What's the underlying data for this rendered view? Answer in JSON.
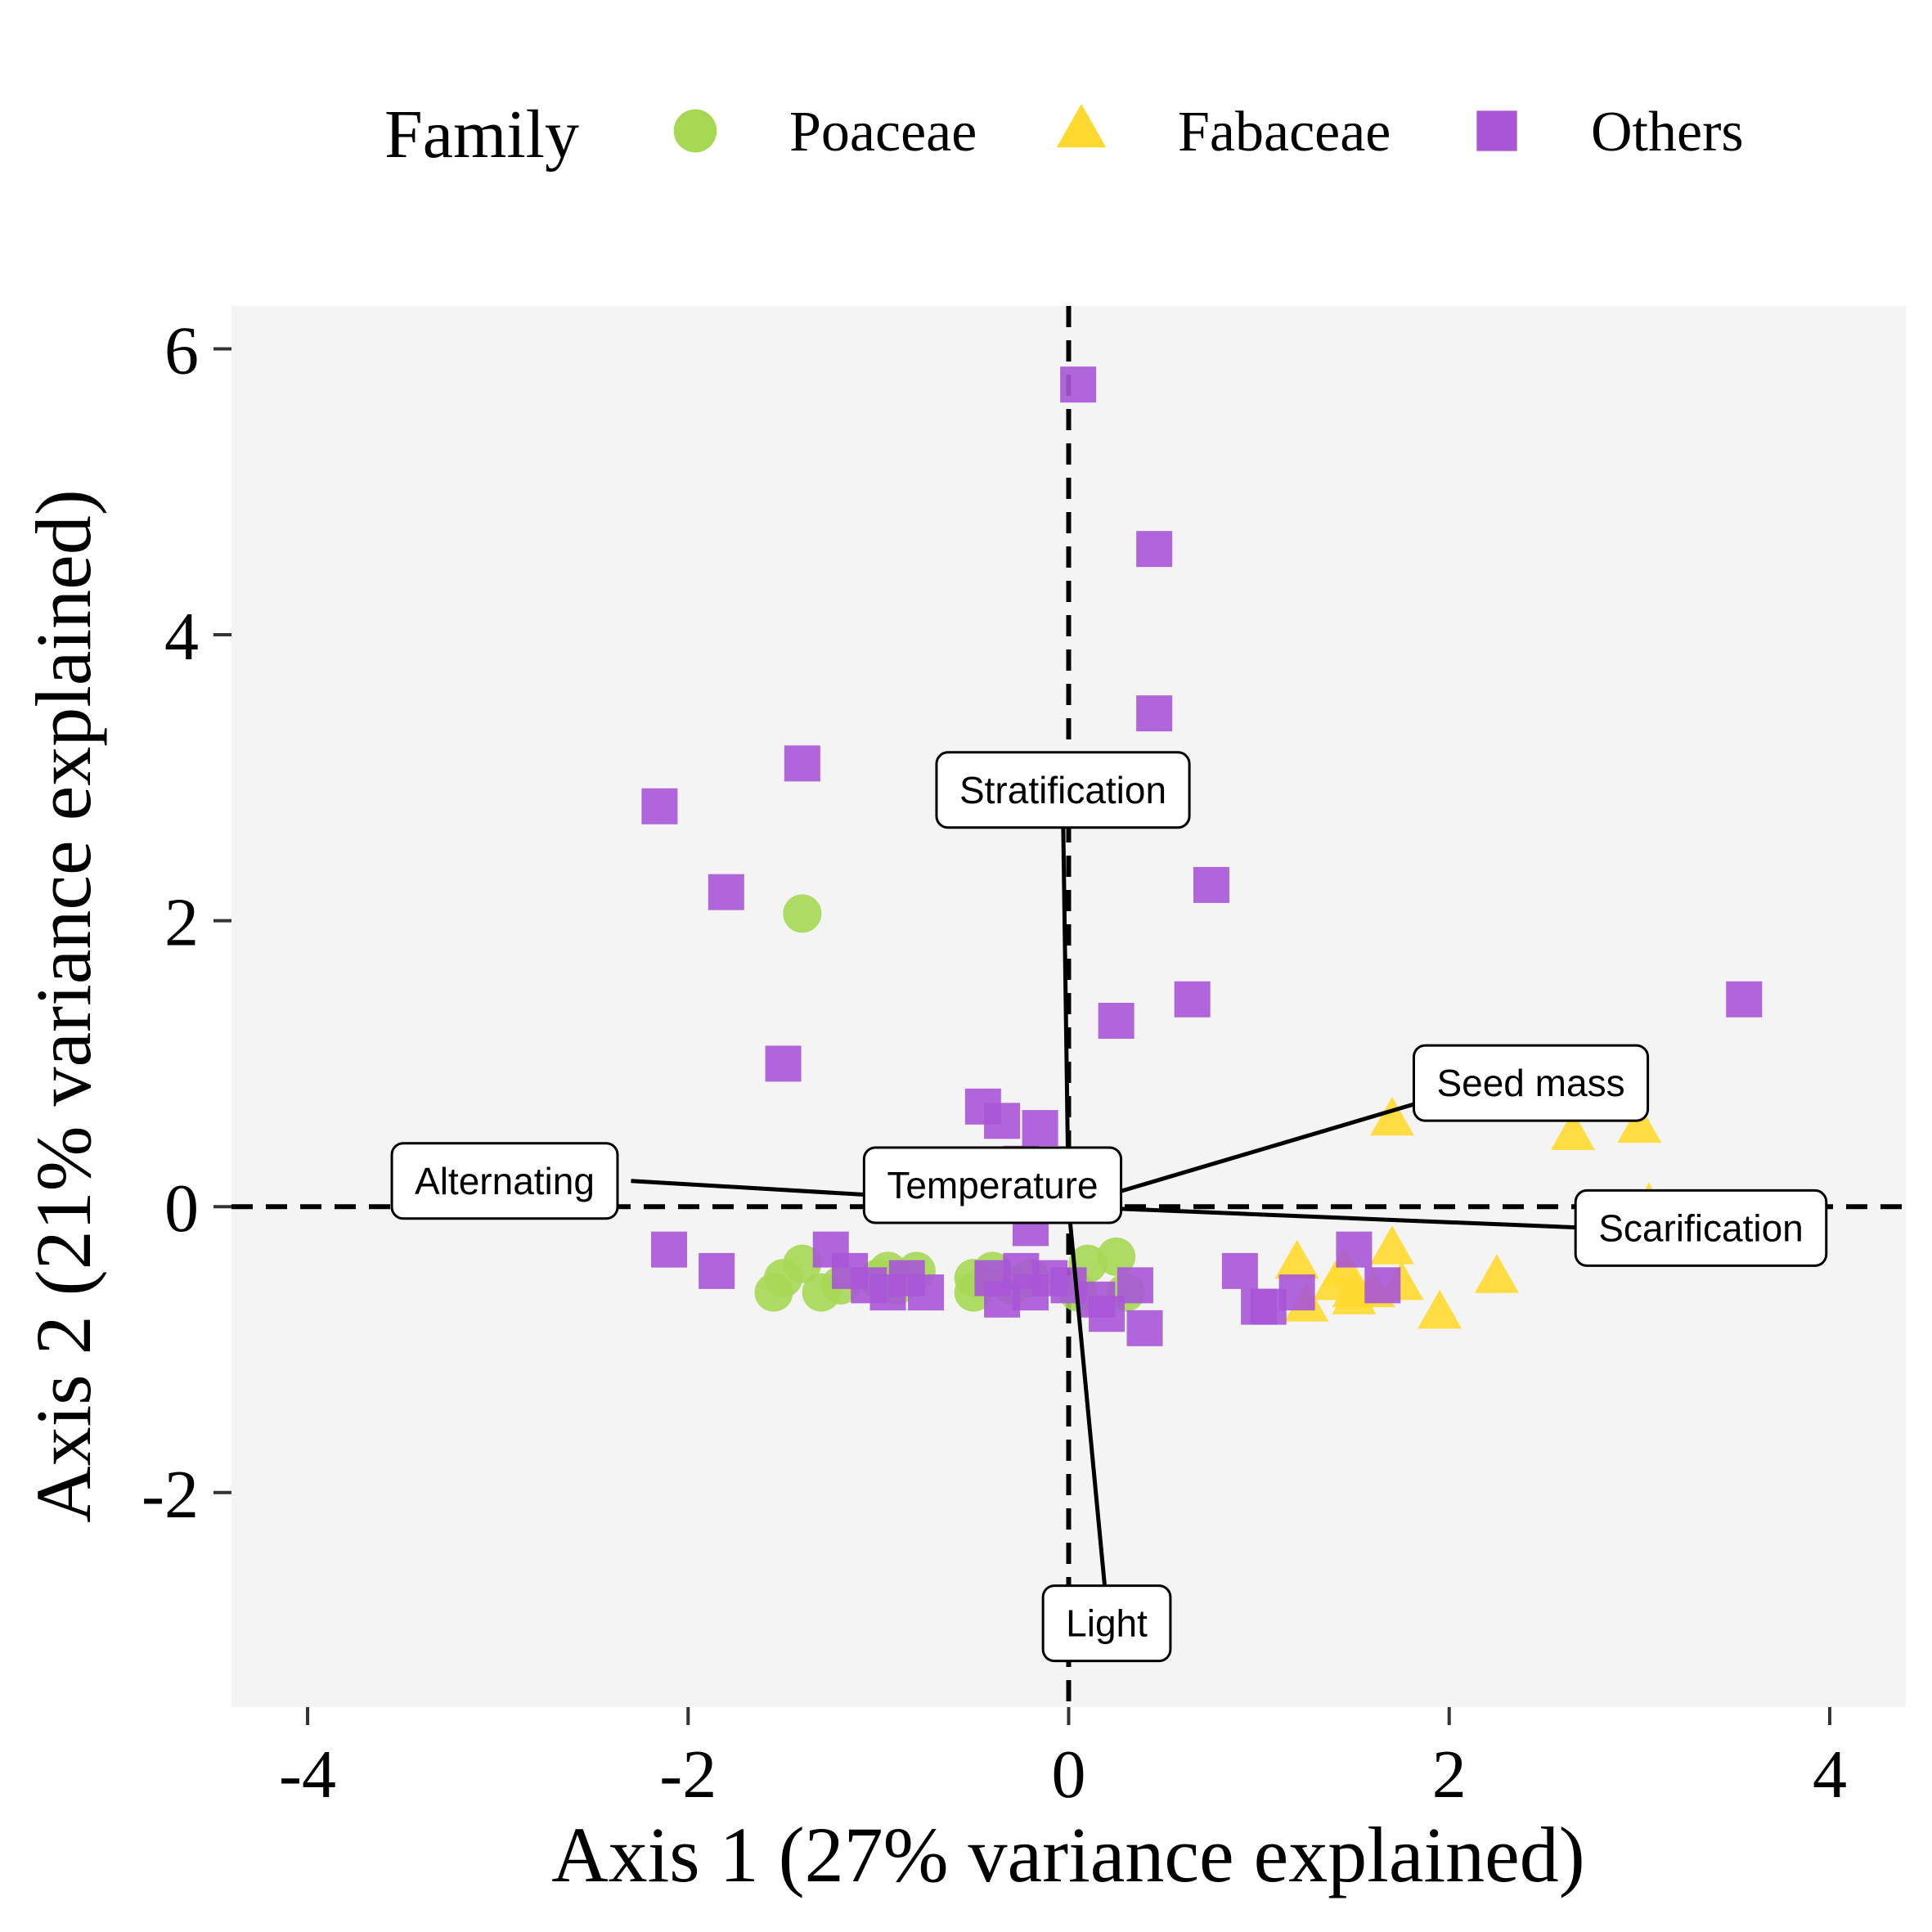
{
  "chart_data": {
    "type": "scatter",
    "xlabel": "Axis 1 (27% variance explained)",
    "ylabel": "Axis 2 (21% variance explained)",
    "xlim": [
      -4.4,
      4.4
    ],
    "ylim": [
      -3.5,
      6.3
    ],
    "x_ticks": [
      -4,
      -2,
      0,
      2,
      4
    ],
    "y_ticks": [
      -2,
      0,
      2,
      4,
      6
    ],
    "x_tick_labels": [
      "-4",
      "-2",
      "0",
      "2",
      "4"
    ],
    "y_tick_labels": [
      "-2",
      "0",
      "2",
      "4",
      "6"
    ],
    "grid": false,
    "reference_lines": {
      "x": 0,
      "y": 0,
      "style": "dashed"
    },
    "legend": {
      "title": "Family",
      "position": "top",
      "items": [
        {
          "label": "Poaceae",
          "shape": "circle",
          "color": "#a6d854"
        },
        {
          "label": "Fabaceae",
          "shape": "triangle",
          "color": "#ffd92f"
        },
        {
          "label": "Others",
          "shape": "square",
          "color": "#a855d7"
        }
      ]
    },
    "panel_background": "#f4f4f4",
    "series": [
      {
        "name": "Poaceae",
        "shape": "circle",
        "color": "#a6d854",
        "points": [
          [
            -1.4,
            2.05
          ],
          [
            -0.7,
            0.05
          ],
          [
            -1.55,
            -0.6
          ],
          [
            -1.5,
            -0.5
          ],
          [
            -1.4,
            -0.4
          ],
          [
            -1.3,
            -0.6
          ],
          [
            -1.2,
            -0.55
          ],
          [
            -1.0,
            -0.5
          ],
          [
            -0.95,
            -0.45
          ],
          [
            -0.9,
            -0.55
          ],
          [
            -0.8,
            -0.45
          ],
          [
            -0.5,
            -0.5
          ],
          [
            -0.4,
            -0.45
          ],
          [
            -0.5,
            -0.6
          ],
          [
            -0.3,
            -0.55
          ],
          [
            -0.2,
            -0.5
          ],
          [
            0.05,
            -0.6
          ],
          [
            0.1,
            -0.4
          ],
          [
            0.25,
            -0.35
          ],
          [
            0.3,
            -0.6
          ]
        ]
      },
      {
        "name": "Fabaceae",
        "shape": "triangle",
        "color": "#ffd92f",
        "points": [
          [
            1.7,
            0.6
          ],
          [
            2.65,
            0.5
          ],
          [
            3.0,
            0.55
          ],
          [
            3.05,
            0.0
          ],
          [
            1.2,
            -0.4
          ],
          [
            1.25,
            -0.7
          ],
          [
            1.4,
            -0.55
          ],
          [
            1.45,
            -0.45
          ],
          [
            1.5,
            -0.65
          ],
          [
            1.6,
            -0.6
          ],
          [
            1.7,
            -0.3
          ],
          [
            1.75,
            -0.55
          ],
          [
            1.95,
            -0.75
          ],
          [
            2.25,
            -0.5
          ],
          [
            1.5,
            -0.6
          ]
        ]
      },
      {
        "name": "Others",
        "shape": "square",
        "color": "#a855d7",
        "points": [
          [
            0.05,
            5.75
          ],
          [
            0.45,
            4.6
          ],
          [
            0.45,
            3.45
          ],
          [
            -2.15,
            2.8
          ],
          [
            -1.4,
            3.1
          ],
          [
            -1.8,
            2.2
          ],
          [
            0.75,
            2.25
          ],
          [
            0.65,
            1.45
          ],
          [
            0.25,
            1.3
          ],
          [
            3.55,
            1.45
          ],
          [
            -1.5,
            1.0
          ],
          [
            1.95,
            0.85
          ],
          [
            -0.45,
            0.7
          ],
          [
            -0.35,
            0.6
          ],
          [
            -0.15,
            0.55
          ],
          [
            -0.25,
            0.3
          ],
          [
            -0.45,
            0.2
          ],
          [
            -0.9,
            0.1
          ],
          [
            -0.6,
            0.05
          ],
          [
            -0.2,
            -0.15
          ],
          [
            -2.1,
            -0.3
          ],
          [
            -1.85,
            -0.45
          ],
          [
            -1.25,
            -0.3
          ],
          [
            -1.15,
            -0.45
          ],
          [
            -1.05,
            -0.55
          ],
          [
            -0.95,
            -0.6
          ],
          [
            -0.85,
            -0.5
          ],
          [
            -0.75,
            -0.6
          ],
          [
            -0.4,
            -0.5
          ],
          [
            -0.35,
            -0.65
          ],
          [
            -0.25,
            -0.45
          ],
          [
            -0.2,
            -0.6
          ],
          [
            -0.1,
            -0.5
          ],
          [
            0.0,
            -0.55
          ],
          [
            0.15,
            -0.65
          ],
          [
            0.2,
            -0.75
          ],
          [
            0.4,
            -0.85
          ],
          [
            0.35,
            -0.55
          ],
          [
            0.9,
            -0.45
          ],
          [
            1.05,
            -0.7
          ],
          [
            1.2,
            -0.6
          ],
          [
            1.5,
            -0.3
          ],
          [
            1.65,
            -0.55
          ],
          [
            1.0,
            -0.7
          ]
        ]
      }
    ],
    "vectors": [
      {
        "label": "Stratification",
        "x": -0.03,
        "y": 2.8
      },
      {
        "label": "Seed mass",
        "x": 1.9,
        "y": 0.75
      },
      {
        "label": "Temperature",
        "x": -0.4,
        "y": 0.15
      },
      {
        "label": "Alternating",
        "x": -2.3,
        "y": 0.18
      },
      {
        "label": "Scarification",
        "x": 2.75,
        "y": -0.15
      },
      {
        "label": "Light",
        "x": 0.2,
        "y": -2.8
      }
    ]
  }
}
